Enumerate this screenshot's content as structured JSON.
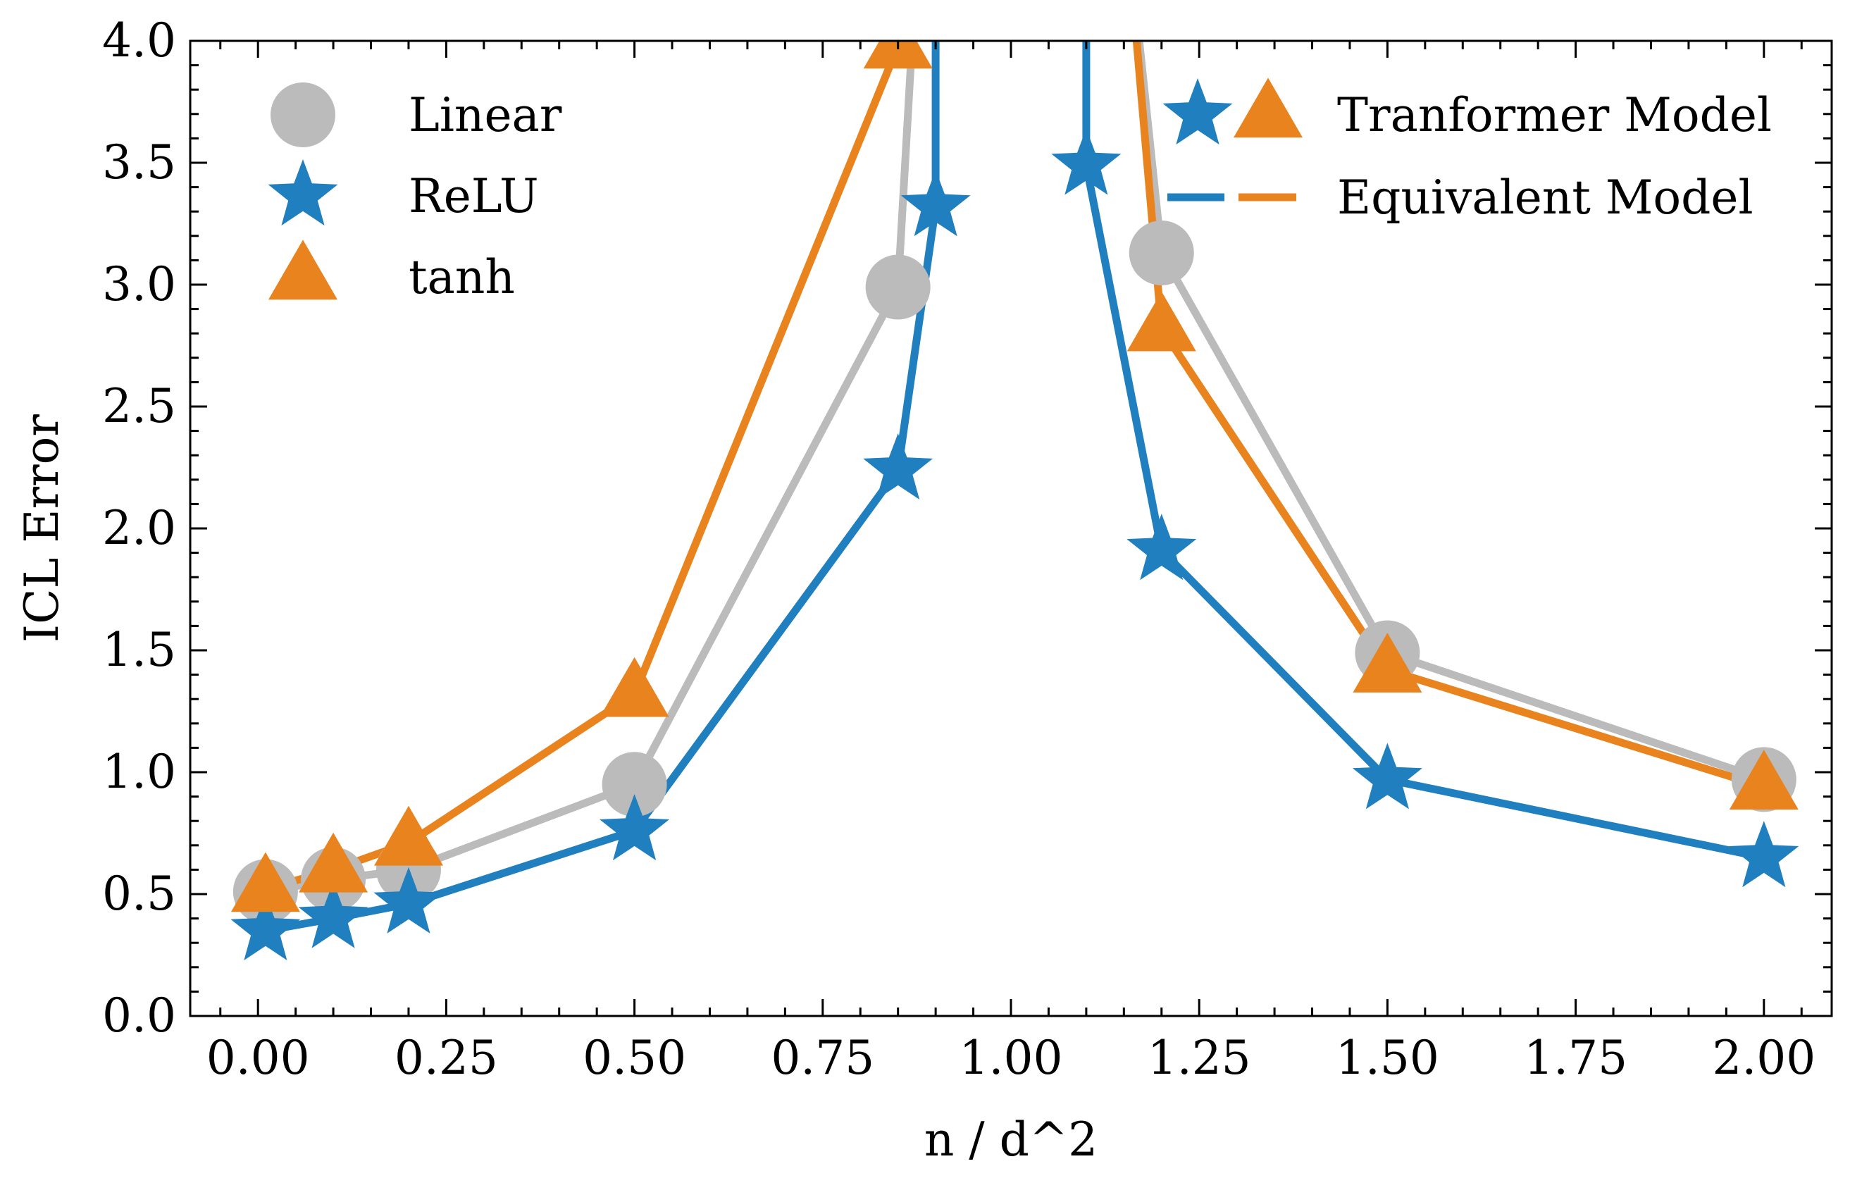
{
  "chart_data": {
    "type": "line",
    "title": "",
    "xlabel": "n / d^2",
    "ylabel": "ICL Error",
    "xlim": [
      -0.09,
      2.09
    ],
    "ylim": [
      0.0,
      4.0
    ],
    "xticks": [
      0.0,
      0.25,
      0.5,
      0.75,
      1.0,
      1.25,
      1.5,
      1.75,
      2.0
    ],
    "xtick_labels": [
      "0.00",
      "0.25",
      "0.50",
      "0.75",
      "1.00",
      "1.25",
      "1.50",
      "1.75",
      "2.00"
    ],
    "yticks": [
      0.0,
      0.5,
      1.0,
      1.5,
      2.0,
      2.5,
      3.0,
      3.5,
      4.0
    ],
    "ytick_labels": [
      "0.0",
      "0.5",
      "1.0",
      "1.5",
      "2.0",
      "2.5",
      "3.0",
      "3.5",
      "4.0"
    ],
    "grid": false,
    "series": [
      {
        "name": "Linear",
        "key": "linear",
        "marker": "circle",
        "color": "#bbbbbb",
        "x": [
          0.01,
          0.1,
          0.2,
          0.5,
          0.85,
          1.2,
          1.5,
          2.0
        ],
        "y": [
          0.51,
          0.56,
          0.6,
          0.95,
          2.99,
          3.13,
          1.49,
          0.97
        ],
        "line": [
          [
            0.01,
            0.51
          ],
          [
            0.1,
            0.56
          ],
          [
            0.2,
            0.6
          ],
          [
            0.5,
            0.95
          ],
          [
            0.85,
            2.99
          ],
          [
            0.88,
            4.6
          ],
          [
            1.15,
            4.6
          ],
          [
            1.2,
            3.13
          ],
          [
            1.5,
            1.49
          ],
          [
            2.0,
            0.97
          ]
        ]
      },
      {
        "name": "ReLU",
        "key": "relu",
        "marker": "star",
        "color": "#1f7fbf",
        "x": [
          0.01,
          0.1,
          0.2,
          0.5,
          0.85,
          0.9,
          1.1,
          1.2,
          1.5,
          2.0
        ],
        "y": [
          0.35,
          0.4,
          0.46,
          0.76,
          2.24,
          3.32,
          3.49,
          1.91,
          0.97,
          0.65
        ],
        "line": [
          [
            0.01,
            0.35
          ],
          [
            0.1,
            0.4
          ],
          [
            0.2,
            0.46
          ],
          [
            0.5,
            0.76
          ],
          [
            0.85,
            2.24
          ],
          [
            0.9,
            3.32
          ],
          [
            0.9,
            4.6
          ],
          [
            1.1,
            4.6
          ],
          [
            1.1,
            3.49
          ],
          [
            1.2,
            1.91
          ],
          [
            1.5,
            0.97
          ],
          [
            2.0,
            0.65
          ]
        ]
      },
      {
        "name": "tanh",
        "key": "tanh",
        "marker": "triangle",
        "color": "#e8831e",
        "x": [
          0.01,
          0.1,
          0.2,
          0.5,
          0.85,
          1.2,
          1.5,
          2.0
        ],
        "y": [
          0.52,
          0.6,
          0.71,
          1.32,
          3.98,
          2.82,
          1.42,
          0.94
        ],
        "line": [
          [
            0.01,
            0.52
          ],
          [
            0.1,
            0.6
          ],
          [
            0.2,
            0.71
          ],
          [
            0.5,
            1.32
          ],
          [
            0.85,
            3.98
          ],
          [
            0.88,
            4.6
          ],
          [
            1.15,
            4.6
          ],
          [
            1.2,
            2.82
          ],
          [
            1.5,
            1.42
          ],
          [
            2.0,
            0.94
          ]
        ]
      }
    ],
    "legends": [
      {
        "position": "top-left",
        "entries": [
          {
            "label": "Linear",
            "marker": "circle",
            "color": "#bbbbbb"
          },
          {
            "label": "ReLU",
            "marker": "star",
            "color": "#1f7fbf"
          },
          {
            "label": "tanh",
            "marker": "triangle",
            "color": "#e8831e"
          }
        ]
      },
      {
        "position": "top-right",
        "entries": [
          {
            "label": "Tranformer Model",
            "style": "markers",
            "colors": [
              "#1f7fbf",
              "#e8831e"
            ]
          },
          {
            "label": "Equivalent Model",
            "style": "dashes",
            "colors": [
              "#1f7fbf",
              "#e8831e"
            ]
          }
        ]
      }
    ]
  }
}
